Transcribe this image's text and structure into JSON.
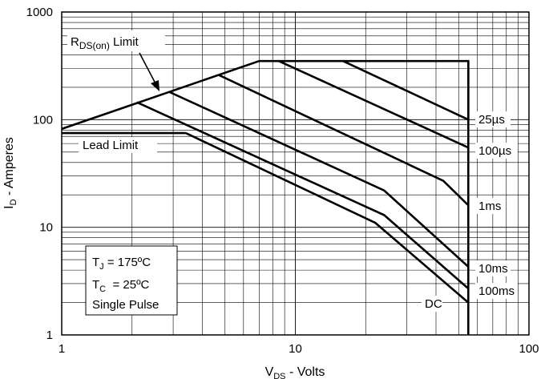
{
  "chart_data": {
    "type": "line",
    "x_scale": "log",
    "y_scale": "log",
    "xlim": [
      1,
      100
    ],
    "ylim": [
      1,
      1000
    ],
    "grid": true,
    "xlabel": {
      "main": "V",
      "sub": "DS",
      "rest": " - Volts"
    },
    "ylabel": {
      "main": "I",
      "sub": "D",
      "rest": " - Amperes"
    },
    "x_ticks": [
      {
        "value": 1,
        "label": "1"
      },
      {
        "value": 10,
        "label": "10"
      },
      {
        "value": 100,
        "label": "100"
      }
    ],
    "y_ticks": [
      {
        "value": 1,
        "label": "1"
      },
      {
        "value": 10,
        "label": "10"
      },
      {
        "value": 100,
        "label": "100"
      },
      {
        "value": 1000,
        "label": "1000"
      }
    ],
    "series": [
      {
        "label": "25µs",
        "points": [
          [
            7.0,
            350
          ],
          [
            55,
            350
          ],
          [
            55,
            100
          ],
          [
            16,
            350
          ]
        ]
      },
      {
        "label": "100µs",
        "points": [
          [
            8.5,
            350
          ],
          [
            55,
            55
          ]
        ]
      },
      {
        "label": "1ms",
        "points": [
          [
            4.7,
            260
          ],
          [
            43,
            27
          ],
          [
            55,
            16
          ]
        ]
      },
      {
        "label": "10ms",
        "points": [
          [
            2.9,
            180
          ],
          [
            24,
            22
          ],
          [
            55,
            4.3
          ]
        ]
      },
      {
        "label": "100ms",
        "points": [
          [
            2.1,
            145
          ],
          [
            24,
            13
          ],
          [
            55,
            2.7
          ]
        ]
      },
      {
        "label": "DC",
        "points": [
          [
            3.4,
            75
          ],
          [
            22,
            11
          ],
          [
            55,
            2.0
          ]
        ]
      }
    ],
    "limits": [
      {
        "label": "RDS(on) Limit",
        "points": [
          [
            1,
            82
          ],
          [
            7.0,
            350
          ]
        ]
      },
      {
        "label": "Lead Limit",
        "points": [
          [
            1,
            75
          ],
          [
            3.4,
            75
          ]
        ]
      },
      {
        "label": "",
        "points": [
          [
            55,
            350
          ],
          [
            55,
            1
          ]
        ]
      }
    ],
    "annotations": {
      "rds_main": "R",
      "rds_sub": "DS(on)",
      "rds_rest": " Limit",
      "lead_limit": "Lead Limit",
      "conditions": [
        {
          "main": "T",
          "sub": "J",
          "rest": " = 175ºC"
        },
        {
          "main": "T",
          "sub": "C",
          "rest": "  = 25ºC"
        },
        {
          "main": "Single Pulse",
          "sub": "",
          "rest": ""
        }
      ]
    }
  }
}
